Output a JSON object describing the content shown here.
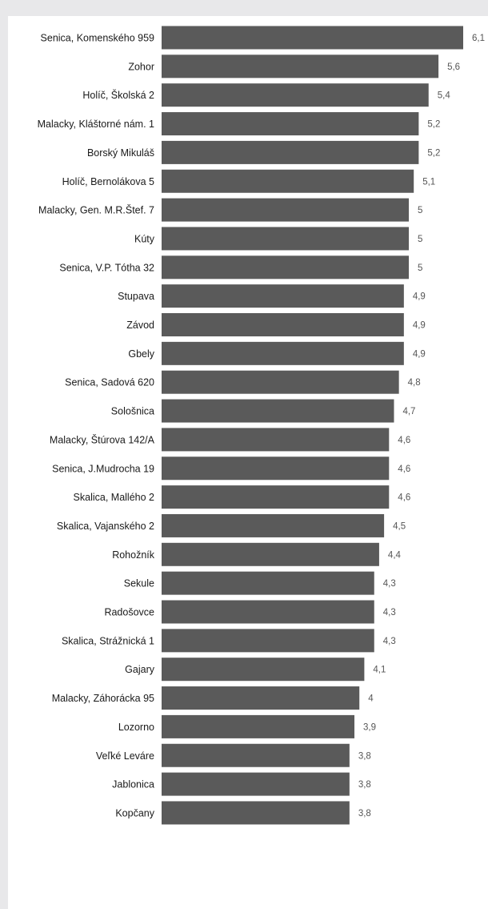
{
  "chart_data": {
    "type": "bar",
    "orientation": "horizontal",
    "title": "",
    "xlabel": "",
    "ylabel": "",
    "xlim": [
      0,
      6.1
    ],
    "grid": false,
    "legend": "none",
    "bar_color": "#5a5a5a",
    "categories": [
      "Senica, Komenského 959",
      "Zohor",
      "Holíč, Školská 2",
      "Malacky, Kláštorné nám. 1",
      "Borský Mikuláš",
      "Holíč, Bernolákova 5",
      "Malacky, Gen. M.R.Štef. 7",
      "Kúty",
      "Senica, V.P. Tótha 32",
      "Stupava",
      "Závod",
      "Gbely",
      "Senica, Sadová 620",
      "Sološnica",
      "Malacky, Štúrova 142/A",
      "Senica, J.Mudrocha 19",
      "Skalica, Mallého 2",
      "Skalica, Vajanského 2",
      "Rohožník",
      "Sekule",
      "Radošovce",
      "Skalica, Strážnická 1",
      "Gajary",
      "Malacky, Záhorácka 95",
      "Lozorno",
      "Veľké Leváre",
      "Jablonica",
      "Kopčany"
    ],
    "values": [
      6.1,
      5.6,
      5.4,
      5.2,
      5.2,
      5.1,
      5,
      5,
      5,
      4.9,
      4.9,
      4.9,
      4.8,
      4.7,
      4.6,
      4.6,
      4.6,
      4.5,
      4.4,
      4.3,
      4.3,
      4.3,
      4.1,
      4,
      3.9,
      3.8,
      3.8,
      3.8
    ],
    "value_labels": [
      "6,1",
      "5,6",
      "5,4",
      "5,2",
      "5,2",
      "5,1",
      "5",
      "5",
      "5",
      "4,9",
      "4,9",
      "4,9",
      "4,8",
      "4,7",
      "4,6",
      "4,6",
      "4,6",
      "4,5",
      "4,4",
      "4,3",
      "4,3",
      "4,3",
      "4,1",
      "4",
      "3,9",
      "3,8",
      "3,8",
      "3,8"
    ]
  }
}
